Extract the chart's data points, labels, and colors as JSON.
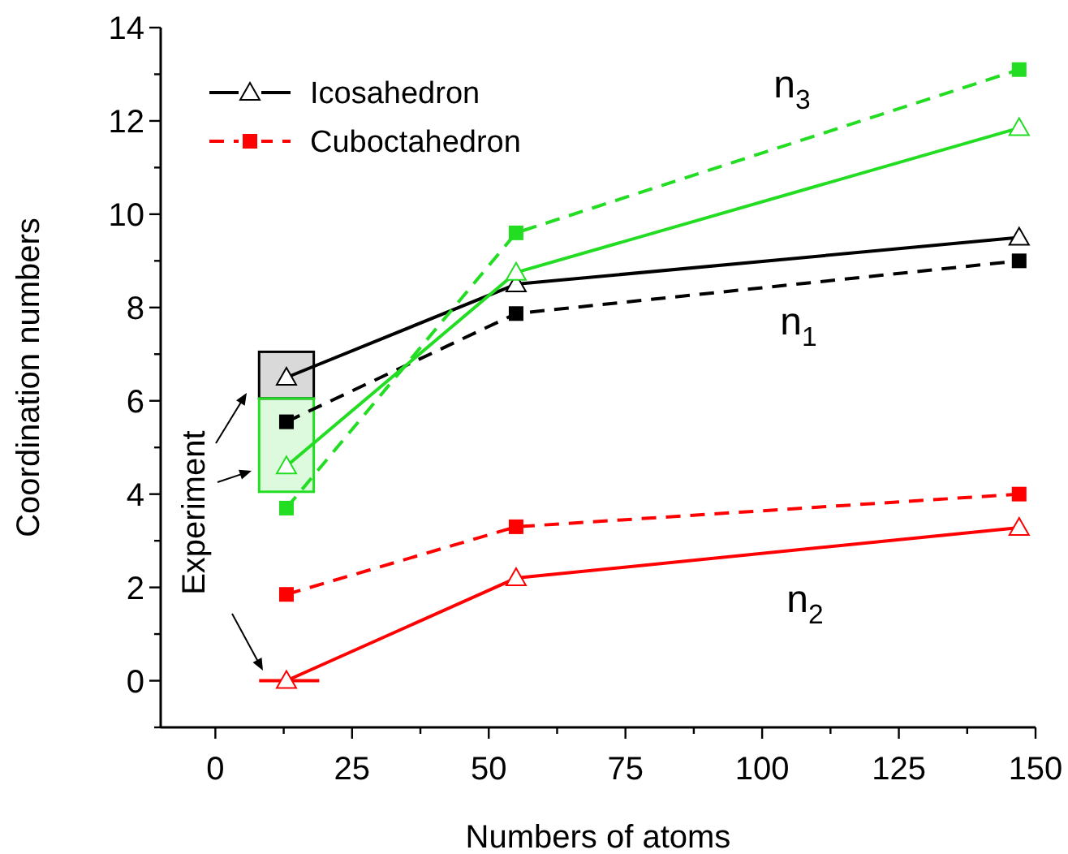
{
  "chart_data": {
    "type": "line",
    "xlabel": "Numbers of atoms",
    "ylabel": "Coordination numbers",
    "xlim": [
      -10,
      150
    ],
    "ylim": [
      -1,
      14
    ],
    "xticks": [
      0,
      {
        "value": 12.5,
        "label": null
      },
      25,
      {
        "value": 37.5,
        "label": null
      },
      50,
      {
        "value": 62.5,
        "label": null
      },
      75,
      {
        "value": 87.5,
        "label": null
      },
      100,
      {
        "value": 112.5,
        "label": null
      },
      125,
      {
        "value": 137.5,
        "label": null
      },
      150
    ],
    "yticks": [
      {
        "value": -1,
        "label": null
      },
      0,
      {
        "value": 1,
        "label": null
      },
      2,
      {
        "value": 3,
        "label": null
      },
      4,
      {
        "value": 5,
        "label": null
      },
      6,
      {
        "value": 7,
        "label": null
      },
      8,
      {
        "value": 9,
        "label": null
      },
      10,
      {
        "value": 11,
        "label": null
      },
      12,
      {
        "value": 13,
        "label": null
      },
      14
    ],
    "legend": "top left",
    "grid": false,
    "series": [
      {
        "type": "bar",
        "x": [
          13
        ],
        "base": [
          6.05
        ],
        "values": [
          1.0
        ],
        "color": "#000000"
      },
      {
        "type": "bar",
        "x": [
          13
        ],
        "base": [
          4.05
        ],
        "values": [
          2.0
        ],
        "color": "#22dd22"
      },
      {
        "type": "line",
        "x": [
          8,
          19
        ],
        "values": [
          0,
          0
        ],
        "color": "#ff0000",
        "marker": "none",
        "line_style": "solid"
      },
      {
        "name": "Icosahedron",
        "x": [
          13,
          55,
          147
        ],
        "values": [
          6.5,
          8.5,
          9.5
        ],
        "color": "#000000",
        "marker": "triangle",
        "line_style": "solid"
      },
      {
        "x": [
          13,
          55,
          147
        ],
        "values": [
          5.55,
          7.87,
          9.0
        ],
        "color": "#000000",
        "marker": "square",
        "line_style": "dashed"
      },
      {
        "x": [
          13,
          55,
          147
        ],
        "values": [
          4.6,
          8.75,
          11.85
        ],
        "color": "#22dd22",
        "marker": "triangle",
        "line_style": "solid"
      },
      {
        "x": [
          13,
          55,
          147
        ],
        "values": [
          3.7,
          9.6,
          13.1
        ],
        "color": "#22dd22",
        "marker": "square",
        "line_style": "dashed"
      },
      {
        "x": [
          13,
          55,
          147
        ],
        "values": [
          0,
          2.2,
          3.28
        ],
        "color": "#ff0000",
        "marker": "triangle",
        "line_style": "solid"
      },
      {
        "name": "Cuboctahedron",
        "x": [
          13,
          55,
          147
        ],
        "values": [
          1.85,
          3.3,
          4.0
        ],
        "color": "#ff0000",
        "marker": "square",
        "line_style": "dashed"
      }
    ],
    "annotations": [
      "n$_{3}$",
      "n$_{1}$",
      "n$_{2}$",
      "Experiment"
    ]
  }
}
